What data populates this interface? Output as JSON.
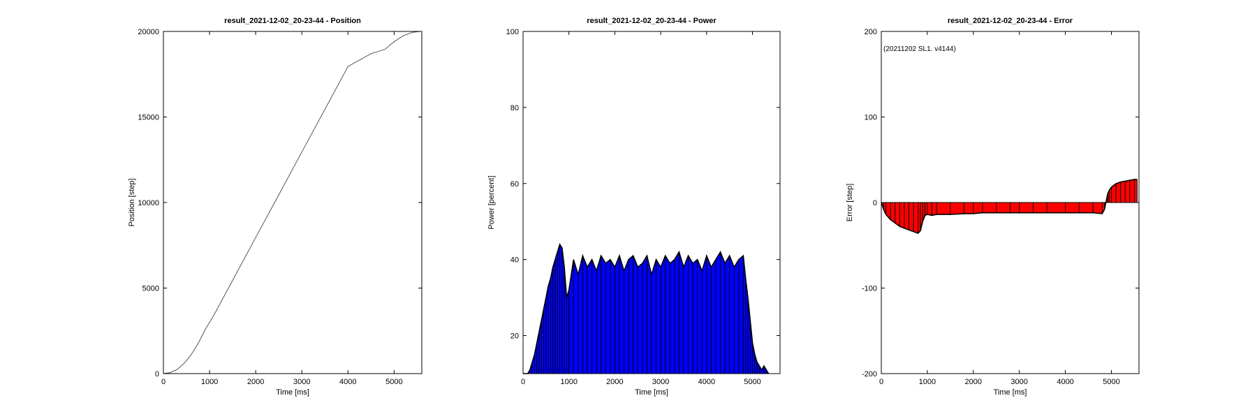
{
  "chart_data": [
    {
      "type": "line",
      "title": "result_2021-12-02_20-23-44 - Position",
      "xlabel": "Time [ms]",
      "ylabel": "Position [step]",
      "xlim": [
        0,
        5600
      ],
      "ylim": [
        0,
        20000
      ],
      "xticks": [
        0,
        1000,
        2000,
        3000,
        4000,
        5000
      ],
      "yticks": [
        0,
        5000,
        10000,
        15000,
        20000
      ],
      "line_color": "#555555",
      "series": [
        {
          "x": [
            0,
            150,
            300,
            450,
            600,
            750,
            900,
            1100,
            1500,
            2000,
            2500,
            3000,
            3500,
            4000,
            4500,
            4800,
            5000,
            5200,
            5400,
            5560
          ],
          "y": [
            0,
            60,
            250,
            600,
            1100,
            1750,
            2550,
            3450,
            5450,
            7950,
            10450,
            12950,
            15450,
            17950,
            18700,
            18950,
            19400,
            19750,
            19950,
            20000
          ]
        }
      ]
    },
    {
      "type": "area",
      "title": "result_2021-12-02_20-23-44 - Power",
      "xlabel": "Time [ms]",
      "ylabel": "Power [percent]",
      "xlim": [
        0,
        5600
      ],
      "ylim": [
        10,
        100
      ],
      "xticks": [
        0,
        1000,
        2000,
        3000,
        4000,
        5000
      ],
      "yticks": [
        20,
        40,
        60,
        80,
        100
      ],
      "fill_color": "#0000ff",
      "edge_color": "#000000",
      "series": [
        {
          "x": [
            0,
            100,
            150,
            200,
            250,
            300,
            350,
            400,
            450,
            500,
            550,
            600,
            650,
            700,
            750,
            800,
            850,
            900,
            950,
            1000,
            1100,
            1200,
            1300,
            1400,
            1500,
            1600,
            1700,
            1800,
            1900,
            2000,
            2100,
            2200,
            2300,
            2400,
            2500,
            2600,
            2700,
            2800,
            2900,
            3000,
            3100,
            3200,
            3300,
            3400,
            3500,
            3600,
            3700,
            3800,
            3900,
            4000,
            4100,
            4200,
            4300,
            4400,
            4500,
            4600,
            4700,
            4800,
            4850,
            4900,
            4950,
            5000,
            5050,
            5100,
            5150,
            5200,
            5250,
            5300,
            5350
          ],
          "y": [
            10,
            10,
            11,
            13,
            15,
            18,
            21,
            24,
            27,
            30,
            33,
            35,
            38,
            40,
            42,
            44,
            43,
            38,
            30,
            32,
            40,
            36,
            41,
            38,
            40,
            37,
            41,
            39,
            40,
            38,
            41,
            37,
            40,
            41,
            38,
            39,
            41,
            36,
            40,
            38,
            41,
            39,
            40,
            42,
            38,
            41,
            39,
            40,
            37,
            41,
            38,
            40,
            42,
            39,
            41,
            38,
            40,
            41,
            35,
            30,
            24,
            18,
            15,
            13,
            12,
            11,
            12,
            11,
            10
          ]
        }
      ]
    },
    {
      "type": "area",
      "title": "result_2021-12-02_20-23-44 - Error",
      "xlabel": "Time [ms]",
      "ylabel": "Error [step]",
      "xlim": [
        0,
        5600
      ],
      "ylim": [
        -200,
        200
      ],
      "xticks": [
        0,
        1000,
        2000,
        3000,
        4000,
        5000
      ],
      "yticks": [
        -200,
        -100,
        0,
        100,
        200
      ],
      "annotation": "(20211202 SL1. v4144)",
      "fill_color": "#ff0000",
      "edge_color": "#000000",
      "series": [
        {
          "x": [
            0,
            50,
            100,
            200,
            300,
            400,
            500,
            600,
            700,
            800,
            850,
            900,
            950,
            1000,
            1100,
            1200,
            1500,
            1800,
            2000,
            2200,
            2500,
            2800,
            3000,
            3300,
            3600,
            4000,
            4300,
            4600,
            4800,
            4850,
            4880,
            4920,
            4950,
            5000,
            5100,
            5200,
            5300,
            5400,
            5500,
            5560
          ],
          "y": [
            0,
            -8,
            -14,
            -20,
            -24,
            -28,
            -30,
            -32,
            -34,
            -36,
            -33,
            -22,
            -15,
            -14,
            -15,
            -14,
            -14,
            -13,
            -13,
            -12,
            -12,
            -12,
            -12,
            -12,
            -12,
            -12,
            -12,
            -12,
            -13,
            -8,
            0,
            10,
            14,
            18,
            22,
            24,
            25,
            26,
            27,
            27
          ]
        }
      ]
    }
  ]
}
